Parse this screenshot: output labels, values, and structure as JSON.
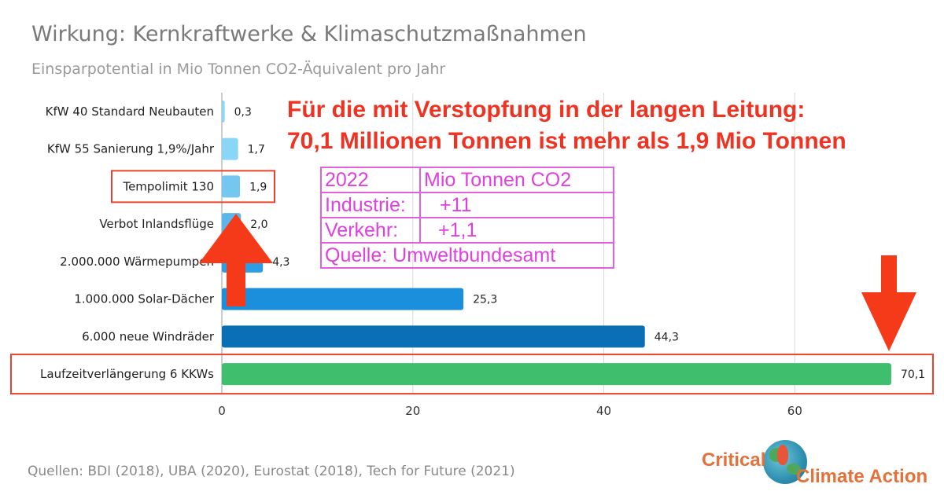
{
  "title": "Wirkung: Kernkraftwerke & Klimaschutzmaßnahmen",
  "subtitle": "Einsparpotential in Mio Tonnen CO2-Äquivalent pro Jahr",
  "source": "Quellen: BDI (2018), UBA (2020), Eurostat (2018), Tech for Future (2021)",
  "annotation": {
    "line1": "Für die mit Verstopfung in der langen Leitung:",
    "line2": "70,1 Millionen Tonnen ist mehr als 1,9 Mio Tonnen"
  },
  "info_table": {
    "rows": [
      [
        "2022",
        "Mio Tonnen CO2"
      ],
      [
        "Industrie:",
        "+11"
      ],
      [
        "Verkehr:",
        "+1,1"
      ],
      [
        "Quelle: Umweltbundesamt",
        ""
      ]
    ],
    "color": "#e040e0"
  },
  "logo": {
    "line1": "Critical",
    "line2": "Climate Action",
    "color": "#e4703a"
  },
  "chart_data": {
    "type": "bar",
    "orientation": "horizontal",
    "categories": [
      "KfW 40 Standard Neubauten",
      "KfW 55 Sanierung 1,9%/Jahr",
      "Tempolimit 130",
      "Verbot Inlandsflüge",
      "2.000.000 Wärmepumpen",
      "1.000.000 Solar-Dächer",
      "6.000 neue Windräder",
      "Laufzeitverlängerung 6 KKWs"
    ],
    "values": [
      0.3,
      1.7,
      1.9,
      2.0,
      4.3,
      25.3,
      44.3,
      70.1
    ],
    "value_labels": [
      "0,3",
      "1,7",
      "1,9",
      "2,0",
      "4,3",
      "25,3",
      "44,3",
      "70,1"
    ],
    "colors": [
      "#8ad6f7",
      "#8ad6f7",
      "#75c6f0",
      "#5cb6ea",
      "#2e9de4",
      "#1b8fdc",
      "#0b6fb5",
      "#3fbf6e"
    ],
    "xlim": [
      0,
      72
    ],
    "xticks": [
      0,
      20,
      40,
      60
    ],
    "grid": true,
    "highlighted": [
      "Tempolimit 130",
      "Laufzeitverlängerung 6 KKWs"
    ],
    "highlight_color": "#e8412c",
    "arrow_color": "#f53a1a"
  }
}
